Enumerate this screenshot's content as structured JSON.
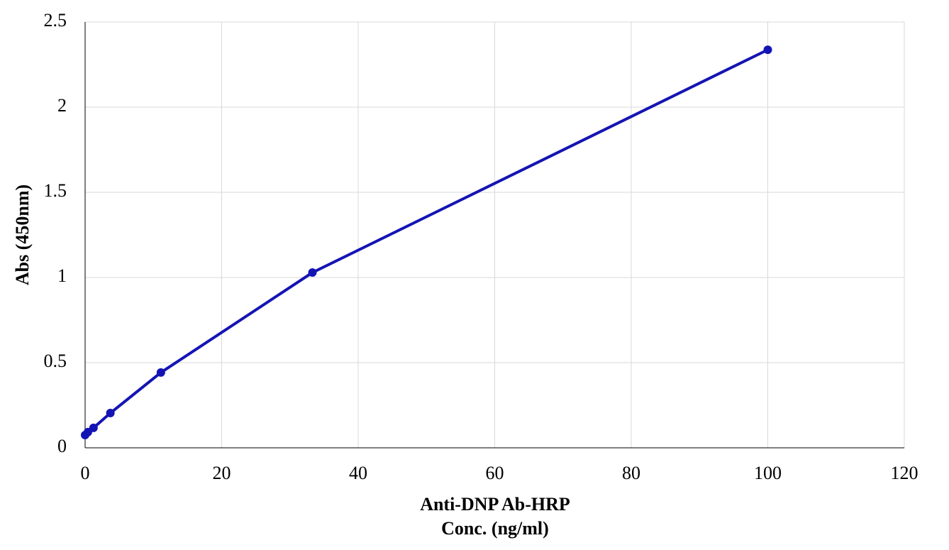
{
  "chart_data": {
    "type": "line",
    "ylabel": "Abs (450nm)",
    "xlabel": [
      "Anti-DNP Ab-HRP",
      "Conc. (ng/ml)"
    ],
    "series": [
      {
        "name": "Anti-DNP Ab-HRP",
        "color": "#1414b4",
        "x": [
          0,
          0.41,
          1.23,
          3.7,
          11.1,
          33.3,
          100
        ],
        "values": [
          0.075,
          0.092,
          0.117,
          0.204,
          0.442,
          1.029,
          2.337
        ]
      }
    ],
    "xlim": [
      0,
      120
    ],
    "xticks": [
      0,
      20,
      40,
      60,
      80,
      100,
      120
    ],
    "ylim": [
      0,
      2.5
    ],
    "yticks": [
      0,
      0.5,
      1,
      1.5,
      2,
      2.5
    ],
    "grid": true
  }
}
